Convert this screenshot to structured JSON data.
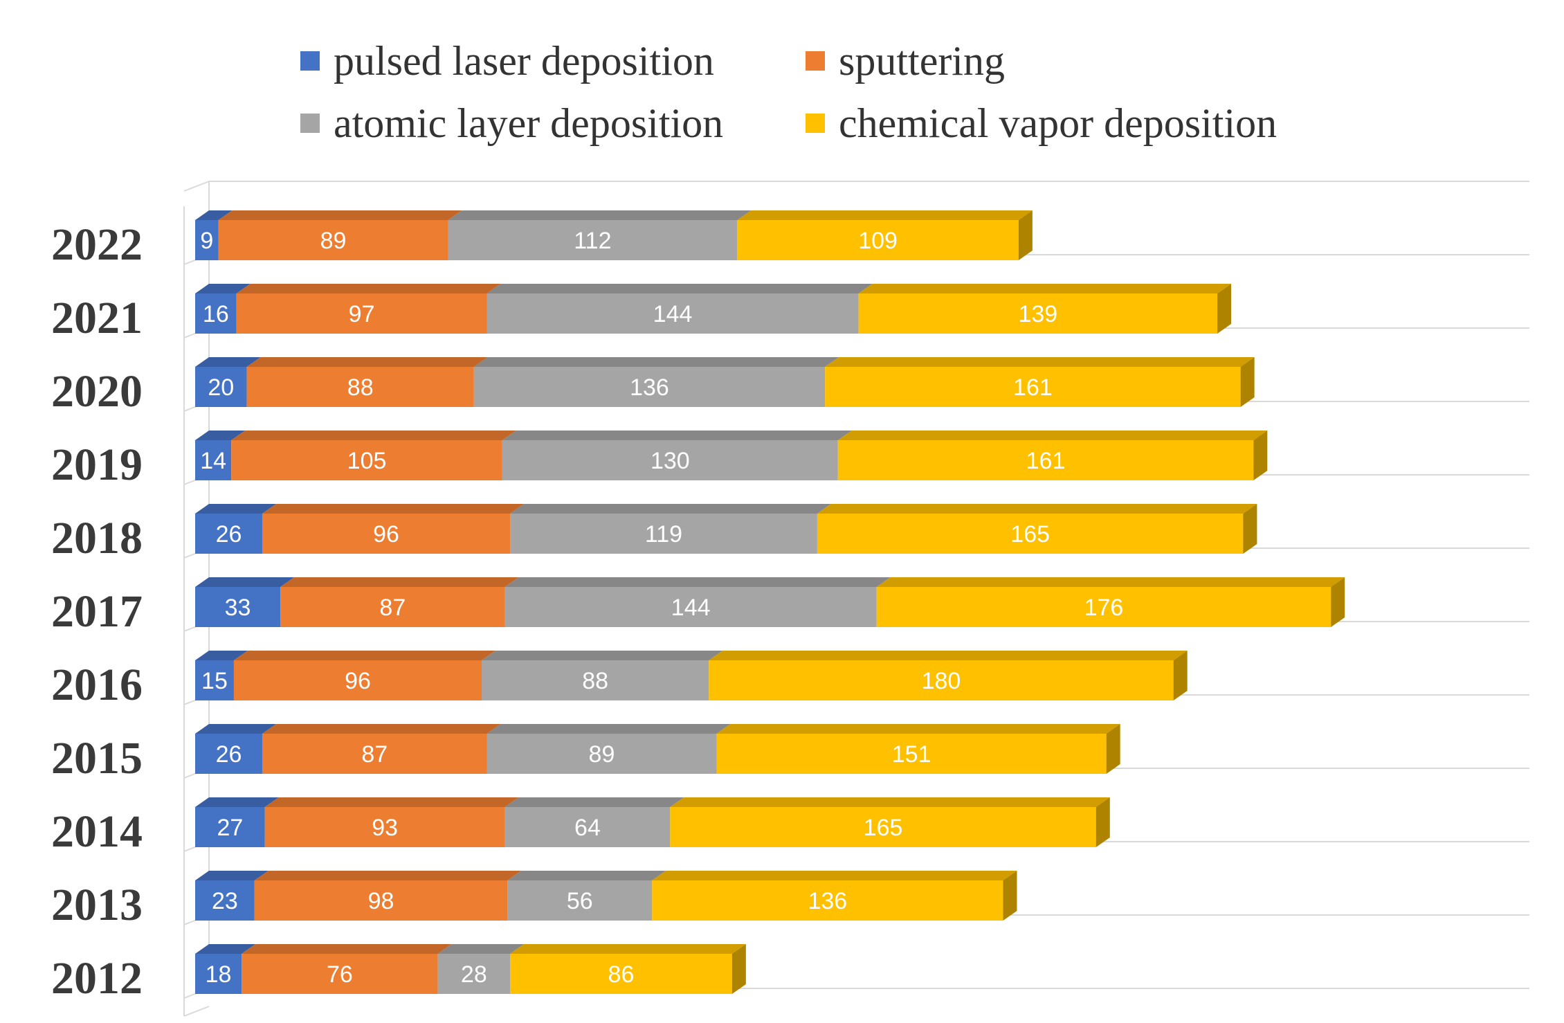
{
  "chart_data": {
    "type": "bar",
    "orientation": "horizontal",
    "stacked": true,
    "style": "3d",
    "title": "",
    "xlabel": "",
    "ylabel": "",
    "categories": [
      "2022",
      "2021",
      "2020",
      "2019",
      "2018",
      "2017",
      "2016",
      "2015",
      "2014",
      "2013",
      "2012"
    ],
    "series": [
      {
        "name": "pulsed laser deposition",
        "color": "#4472C4",
        "values": [
          9,
          16,
          20,
          14,
          26,
          33,
          15,
          26,
          27,
          23,
          18
        ]
      },
      {
        "name": "sputtering",
        "color": "#ED7D31",
        "values": [
          89,
          97,
          88,
          105,
          96,
          87,
          96,
          87,
          93,
          98,
          76
        ]
      },
      {
        "name": "atomic layer deposition",
        "color": "#A5A5A5",
        "values": [
          112,
          144,
          136,
          130,
          119,
          144,
          88,
          89,
          64,
          56,
          28
        ]
      },
      {
        "name": "chemical vapor deposition",
        "color": "#FFC000",
        "values": [
          109,
          139,
          161,
          161,
          165,
          176,
          180,
          151,
          165,
          136,
          86
        ]
      }
    ],
    "xlim": [
      0,
      460
    ],
    "grid": "horizontal",
    "legend": "top",
    "data_labels": true
  }
}
